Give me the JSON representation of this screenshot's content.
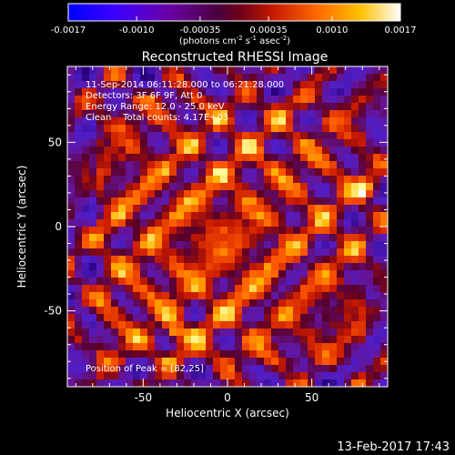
{
  "colorbar": {
    "tick_labels": [
      "-0.0017",
      "-0.0010",
      "-0.00035",
      "0.00035",
      "0.0010",
      "0.0017"
    ],
    "tick_values": [
      -0.0017,
      -0.001,
      -0.00035,
      0.00035,
      0.001,
      0.0017
    ],
    "range": [
      -0.0017,
      0.0017
    ],
    "units_text": "(photons cm",
    "units_exp1": "-2",
    "units_mid": " s",
    "units_exp2": "-1",
    "units_mid2": " asec",
    "units_exp3": "-2",
    "units_close": ")",
    "colors": [
      "#0000ff",
      "#5000d8",
      "#6800a0",
      "#8c0040",
      "#c81e00",
      "#ff6000",
      "#ffb000",
      "#ffff80",
      "#ffffff"
    ]
  },
  "image": {
    "title": "Reconstructed RHESSI Image",
    "info_lines": [
      "11-Sep-2014 06:11:28.000 to 06:21:28.000",
      "Detectors: 3F 6F 9F, Att 0",
      "Energy Range: 12.0 - 25.0 keV",
      "Clean    Total counts: 4.17E+03"
    ],
    "peak_label": "Position of Peak = [82,25]",
    "peak_position": [
      82,
      25
    ],
    "x_axis": {
      "label": "Heliocentric X (arcsec)",
      "ticks": [
        "-50",
        "0",
        "50"
      ],
      "tick_values": [
        -50,
        0,
        50
      ],
      "range": [
        -95,
        95
      ]
    },
    "y_axis": {
      "label": "Heliocentric Y (arcsec)",
      "ticks": [
        "50",
        "0",
        "-50"
      ],
      "tick_values": [
        50,
        0,
        -50
      ],
      "range": [
        -95,
        95
      ]
    }
  },
  "footer": {
    "timestamp": "13-Feb-2017 17:43"
  }
}
